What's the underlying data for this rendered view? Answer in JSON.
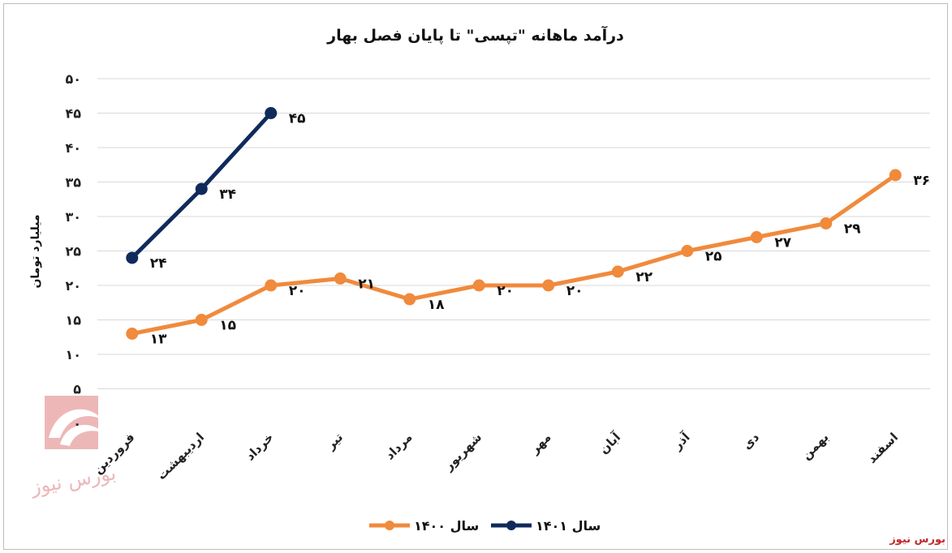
{
  "chart_data": {
    "type": "line",
    "title": "درآمد ماهانه \"تپسی\" تا پایان فصل بهار",
    "ylabel": "میلیارد تومان",
    "xlabel": "",
    "ylim": [
      0,
      50
    ],
    "yticks": [
      "۰",
      "۵",
      "۱۰",
      "۱۵",
      "۲۰",
      "۲۵",
      "۳۰",
      "۳۵",
      "۴۰",
      "۴۵",
      "۵۰"
    ],
    "categories": [
      "فروردین",
      "اردیبهشت",
      "خرداد",
      "تیر",
      "مرداد",
      "شهریور",
      "مهر",
      "آبان",
      "آذر",
      "دی",
      "بهمن",
      "اسفند"
    ],
    "grid": true,
    "legend_position": "bottom",
    "series": [
      {
        "name": "سال ۱۴۰۰",
        "color": "#f08a3c",
        "values": [
          13,
          15,
          20,
          21,
          18,
          20,
          20,
          22,
          25,
          27,
          29,
          36
        ],
        "labels": [
          "۱۳",
          "۱۵",
          "۲۰",
          "۲۱",
          "۱۸",
          "۲۰",
          "۲۰",
          "۲۲",
          "۲۵",
          "۲۷",
          "۲۹",
          "۳۶"
        ]
      },
      {
        "name": "سال ۱۴۰۱",
        "color": "#102a5c",
        "values": [
          24,
          34,
          45,
          null,
          null,
          null,
          null,
          null,
          null,
          null,
          null,
          null
        ],
        "labels": [
          "۲۴",
          "۳۴",
          "۴۵",
          "",
          "",
          "",
          "",
          "",
          "",
          "",
          "",
          ""
        ]
      }
    ]
  },
  "watermark": {
    "text": "بورس نیوز",
    "color": "#c0292b"
  },
  "credit": "بورس نیوز"
}
